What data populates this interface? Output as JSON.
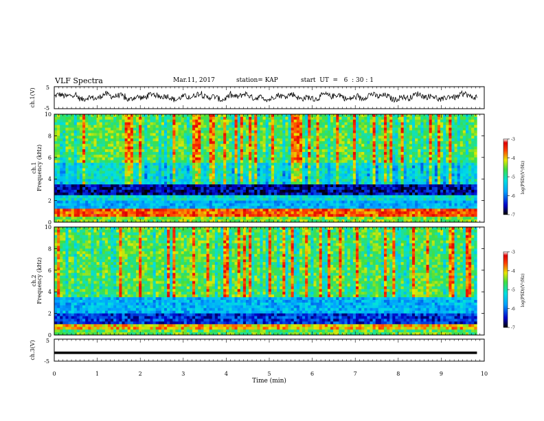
{
  "header": {
    "title": "VLF Spectra",
    "date": "Mar.11, 2017",
    "station": "station= KAP",
    "start": "start  UT  =   6  : 30 : 1"
  },
  "chart_data": [
    {
      "type": "line",
      "name": "ch1-waveform",
      "ylabel": "ch.1(V)",
      "ylim": [
        -5,
        5
      ],
      "yticks": [
        "5",
        "-5"
      ],
      "xlim": [
        0,
        10
      ],
      "note_values": "noisy waveform fluctuating about 0 V, roughly between -2 and 3 V",
      "range_approx": [
        -2,
        3
      ]
    },
    {
      "type": "heatmap",
      "name": "ch1-spectrogram",
      "ylabel": "ch.1\nFrequency (kHz)",
      "ylim": [
        0,
        10
      ],
      "yticks": [
        "0",
        "2",
        "4",
        "6",
        "8",
        "10"
      ],
      "xlim": [
        0,
        10
      ],
      "colorbar": {
        "label": "log(PSD)(V²/Hz)",
        "range": [
          -7,
          -3
        ],
        "ticks": [
          "-3",
          "-4",
          "-5",
          "-6",
          "-7"
        ]
      },
      "bands": [
        {
          "from_khz": 0,
          "to_khz": 0.4,
          "level": -4.5
        },
        {
          "from_khz": 0.4,
          "to_khz": 1.2,
          "level": -3.6
        },
        {
          "from_khz": 1.2,
          "to_khz": 2.0,
          "level": -5.6
        },
        {
          "from_khz": 2.0,
          "to_khz": 2.6,
          "level": -5.2
        },
        {
          "from_khz": 2.6,
          "to_khz": 3.6,
          "level": -6.6
        },
        {
          "from_khz": 3.6,
          "to_khz": 5.5,
          "level": -5.2
        },
        {
          "from_khz": 5.5,
          "to_khz": 10,
          "level": -4.6
        }
      ]
    },
    {
      "type": "heatmap",
      "name": "ch2-spectrogram",
      "ylabel": "ch.2\nFrequency (kHz)",
      "ylim": [
        0,
        10
      ],
      "yticks": [
        "0",
        "2",
        "4",
        "6",
        "8",
        "10"
      ],
      "xlim": [
        0,
        10
      ],
      "colorbar": {
        "label": "log(PSD)(V²/Hz)",
        "range": [
          -7,
          -3
        ],
        "ticks": [
          "-3",
          "-4",
          "-5",
          "-6",
          "-7"
        ]
      },
      "bands": [
        {
          "from_khz": 0,
          "to_khz": 0.4,
          "level": -4.6
        },
        {
          "from_khz": 0.4,
          "to_khz": 0.9,
          "level": -4.0
        },
        {
          "from_khz": 0.9,
          "to_khz": 2.0,
          "level": -6.3
        },
        {
          "from_khz": 2.0,
          "to_khz": 3.6,
          "level": -5.6
        },
        {
          "from_khz": 3.6,
          "to_khz": 10,
          "level": -4.6
        }
      ]
    },
    {
      "type": "line",
      "name": "ch3-waveform",
      "ylabel": "ch.3(V)",
      "ylim": [
        -5,
        5
      ],
      "yticks": [
        "5",
        "-5"
      ],
      "xlim": [
        0,
        10
      ],
      "constant_value": -1.2
    }
  ],
  "xaxis": {
    "label": "Time (min)",
    "ticks": [
      "0",
      "1",
      "2",
      "3",
      "4",
      "5",
      "6",
      "7",
      "8",
      "9",
      "10"
    ]
  }
}
